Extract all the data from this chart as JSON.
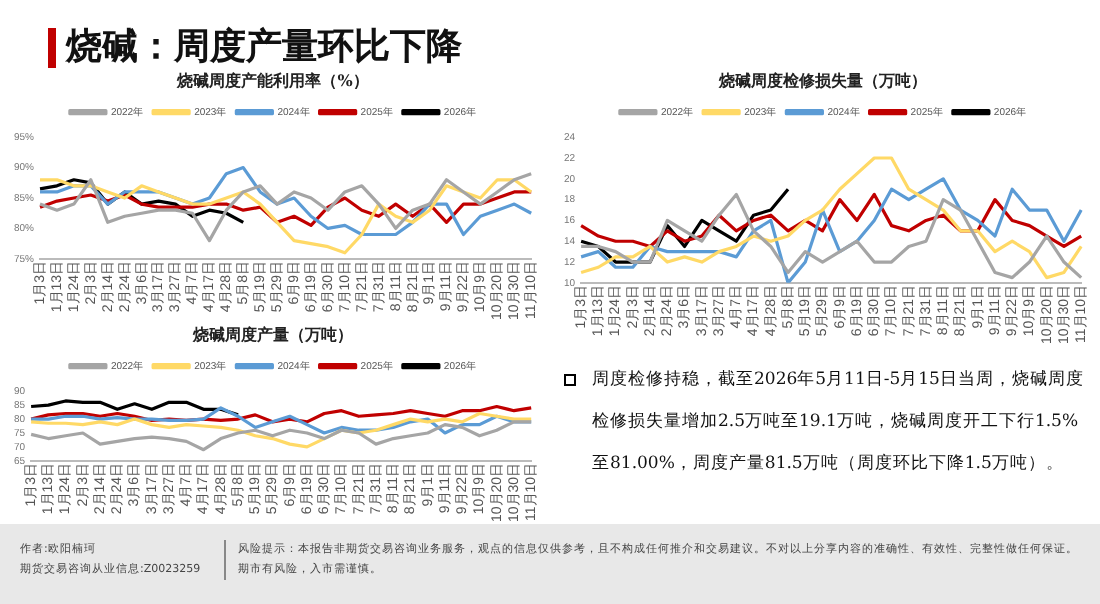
{
  "chart_data": [
    {
      "type": "line",
      "title": "烧碱周度产能利用率（%）",
      "legend": "top",
      "marker": "none",
      "line_style": "solid",
      "categories": [
        "1月3日",
        "1月13日",
        "1月24日",
        "2月3日",
        "2月14日",
        "2月24日",
        "3月6日",
        "3月17日",
        "3月27日",
        "4月7日",
        "4月17日",
        "4月28日",
        "5月8日",
        "5月19日",
        "5月29日",
        "6月9日",
        "6月19日",
        "6月30日",
        "7月10日",
        "7月21日",
        "7月31日",
        "8月11日",
        "8月21日",
        "9月1日",
        "9月11日",
        "9月22日",
        "10月9日",
        "10月20日",
        "10月30日",
        "11月10日"
      ],
      "ylim": [
        75,
        95
      ],
      "yticks": [
        {
          "value": 75,
          "label": "75%"
        },
        {
          "value": 80,
          "label": "80%"
        },
        {
          "value": 85,
          "label": "85%"
        },
        {
          "value": 90,
          "label": "90%"
        },
        {
          "value": 95,
          "label": "95%"
        }
      ],
      "series": [
        {
          "name": "2022年",
          "color": "#a5a5a5",
          "values": [
            84,
            83,
            84,
            88,
            81,
            82,
            82.5,
            83,
            83,
            82.5,
            78,
            83,
            86,
            87,
            84,
            86,
            85,
            83,
            86,
            87,
            84,
            80,
            83,
            84,
            88,
            86,
            84,
            86,
            88,
            89
          ]
        },
        {
          "name": "2023年",
          "color": "#ffd966",
          "values": [
            88,
            88,
            87,
            87,
            86,
            85,
            87,
            86,
            85,
            84,
            84,
            85,
            86,
            84,
            81,
            78,
            77.5,
            77,
            76,
            79,
            84,
            82,
            81,
            83,
            87,
            86,
            85,
            88,
            88,
            86
          ]
        },
        {
          "name": "2024年",
          "color": "#5b9bd5",
          "values": [
            86,
            86,
            87,
            87,
            84,
            86,
            86,
            86,
            85,
            84,
            85,
            89,
            90,
            86,
            84,
            85,
            82,
            80,
            80.5,
            79,
            79,
            79,
            81,
            84,
            84,
            79,
            82,
            83,
            84,
            82.5
          ]
        },
        {
          "name": "2025年",
          "color": "#c00000",
          "values": [
            83.5,
            84.5,
            85,
            85.5,
            84.5,
            85.5,
            84,
            83.5,
            83.5,
            83.5,
            84,
            84,
            83,
            83.5,
            81,
            82,
            80.5,
            83.5,
            85,
            83,
            82,
            84,
            82,
            84,
            81,
            84,
            84,
            85,
            86,
            86
          ]
        },
        {
          "name": "2026年",
          "color": "#000000",
          "values": [
            86.5,
            87,
            88,
            87.5,
            84,
            86,
            84,
            84.5,
            84,
            82,
            83,
            82.5,
            81,
            null,
            null,
            null,
            null,
            null,
            null,
            null,
            null,
            null,
            null,
            null,
            null,
            null,
            null,
            null,
            null,
            null
          ]
        }
      ]
    },
    {
      "type": "line",
      "title": "烧碱周度检修损失量（万吨）",
      "legend": "top",
      "marker": "none",
      "line_style": "solid",
      "categories": [
        "1月3日",
        "1月13日",
        "1月24日",
        "2月3日",
        "2月14日",
        "2月24日",
        "3月6日",
        "3月17日",
        "3月27日",
        "4月7日",
        "4月17日",
        "4月28日",
        "5月8日",
        "5月19日",
        "5月29日",
        "6月9日",
        "6月19日",
        "6月30日",
        "7月10日",
        "7月21日",
        "7月31日",
        "8月11日",
        "8月21日",
        "9月1日",
        "9月11日",
        "9月22日",
        "10月9日",
        "10月20日",
        "10月30日",
        "11月10日"
      ],
      "ylim": [
        10,
        24
      ],
      "yticks": [
        10,
        12,
        14,
        16,
        18,
        20,
        22,
        24
      ],
      "series": [
        {
          "name": "2022年",
          "color": "#a5a5a5",
          "values": [
            13.5,
            13.5,
            13,
            12,
            12,
            16,
            15,
            14,
            16.5,
            18.5,
            15,
            13.5,
            11,
            13,
            12,
            13,
            14,
            12,
            12,
            13.5,
            14,
            18,
            17,
            14,
            11,
            10.5,
            12,
            14.5,
            12,
            10.5
          ]
        },
        {
          "name": "2023年",
          "color": "#ffd966",
          "values": [
            11,
            11.5,
            12.5,
            12.5,
            13.5,
            12,
            12.5,
            12,
            13,
            13.5,
            14.5,
            14,
            14.5,
            16,
            17,
            19,
            20.5,
            22,
            22,
            19,
            18,
            17,
            15,
            15,
            13,
            14,
            13,
            10.5,
            11,
            13.5
          ]
        },
        {
          "name": "2024年",
          "color": "#5b9bd5",
          "values": [
            12.5,
            13,
            11.5,
            11.5,
            13.5,
            13,
            13,
            13,
            13,
            12.5,
            15,
            16,
            10,
            12,
            17,
            13,
            14,
            16,
            19,
            18,
            19,
            20,
            17,
            16,
            14.5,
            19,
            17,
            17,
            14,
            17
          ]
        },
        {
          "name": "2025年",
          "color": "#c00000",
          "values": [
            15.5,
            14.5,
            14,
            14,
            13.5,
            15,
            14,
            14.5,
            16.5,
            15,
            16,
            16.5,
            15,
            16,
            15,
            18,
            16,
            18.5,
            15.5,
            15,
            16,
            16.5,
            15,
            15,
            18,
            16,
            15.5,
            14.5,
            13.5,
            14.5
          ]
        },
        {
          "name": "2026年",
          "color": "#000000",
          "values": [
            14,
            13.5,
            12,
            12,
            12,
            15.5,
            13.5,
            16,
            15,
            14,
            16.5,
            17,
            19,
            null,
            null,
            null,
            null,
            null,
            null,
            null,
            null,
            null,
            null,
            null,
            null,
            null,
            null,
            null,
            null,
            null
          ]
        }
      ]
    },
    {
      "type": "line",
      "title": "烧碱周度产量（万吨）",
      "legend": "top",
      "marker": "none",
      "line_style": "solid",
      "categories": [
        "1月3日",
        "1月13日",
        "1月24日",
        "2月3日",
        "2月14日",
        "2月24日",
        "3月6日",
        "3月17日",
        "3月27日",
        "4月7日",
        "4月17日",
        "4月28日",
        "5月8日",
        "5月19日",
        "5月29日",
        "6月9日",
        "6月19日",
        "6月30日",
        "7月10日",
        "7月21日",
        "7月31日",
        "8月11日",
        "8月21日",
        "9月1日",
        "9月11日",
        "9月22日",
        "10月9日",
        "10月20日",
        "10月30日",
        "11月10日"
      ],
      "ylim": [
        65,
        90
      ],
      "yticks": [
        65,
        70,
        75,
        80,
        85,
        90
      ],
      "series": [
        {
          "name": "2022年",
          "color": "#a5a5a5",
          "values": [
            74.5,
            73,
            74,
            75,
            71,
            72,
            73,
            73.5,
            73,
            72,
            69,
            73,
            75,
            76,
            74,
            76,
            75,
            73,
            76,
            75,
            71,
            73,
            74,
            75,
            78,
            77,
            74,
            76,
            79,
            79
          ]
        },
        {
          "name": "2023年",
          "color": "#ffd966",
          "values": [
            79,
            78.5,
            78.5,
            78,
            79,
            78,
            80,
            78,
            77,
            78,
            77.5,
            77,
            76,
            74,
            73,
            71,
            70,
            73,
            76,
            75,
            76,
            78,
            80,
            79,
            80,
            79,
            82,
            81,
            80,
            80
          ]
        },
        {
          "name": "2024年",
          "color": "#5b9bd5",
          "values": [
            80,
            80,
            81,
            81,
            80,
            80.5,
            80,
            80,
            79.5,
            79.5,
            80,
            84,
            81,
            77,
            79,
            81,
            78,
            75,
            77,
            76,
            76,
            77,
            79,
            80,
            75,
            78,
            78,
            81,
            79,
            79
          ]
        },
        {
          "name": "2025年",
          "color": "#c00000",
          "values": [
            80,
            81.5,
            82,
            82,
            81,
            82,
            81,
            79.5,
            80,
            79.5,
            80,
            79.5,
            80,
            81.5,
            79,
            80,
            79,
            82,
            83,
            81,
            81.5,
            82,
            83,
            82,
            81,
            83,
            83,
            84.5,
            83,
            84
          ]
        },
        {
          "name": "2026年",
          "color": "#000000",
          "values": [
            84.5,
            85,
            86.5,
            86,
            86,
            83.5,
            85.5,
            83.5,
            86,
            86,
            83.5,
            83.5,
            81.5,
            null,
            null,
            null,
            null,
            null,
            null,
            null,
            null,
            null,
            null,
            null,
            null,
            null,
            null,
            null,
            null,
            null
          ]
        }
      ]
    },
    {
      "type": "other",
      "title": "烧碱：周度产量环比下降",
      "annotations": [
        "周度检修持稳，截至2026年5月11日-5月15日当周，烧碱周度检修损失量增加2.5万吨至19.1万吨，烧碱周度开工下行1.5%至81.00%，周度产量81.5万吨（周度环比下降1.5万吨）。",
        "作者:欧阳楠珂",
        "期货交易咨询从业信息:Z0023259",
        "风险提示：本报告非期货交易咨询业务服务，观点的信息仅供参考，且不构成任何推介和交易建议。不对以上分享内容的准确性、有效性、完整性做任何保证。期市有风险，入市需谨慎。"
      ]
    }
  ]
}
